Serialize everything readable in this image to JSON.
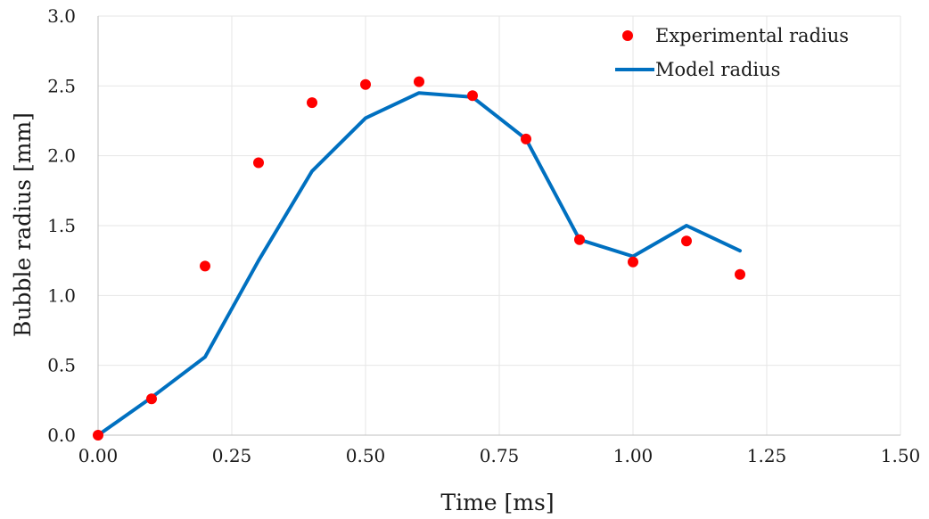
{
  "chart_data": {
    "type": "scatter",
    "xlabel": "Time [ms]",
    "ylabel": "Bubble radius [mm]",
    "xlim": [
      0,
      1.5
    ],
    "ylim": [
      0,
      3.0
    ],
    "x_ticks": [
      "0.00",
      "0.25",
      "0.50",
      "0.75",
      "1.00",
      "1.25",
      "1.50"
    ],
    "y_ticks": [
      "0.0",
      "0.5",
      "1.0",
      "1.5",
      "2.0",
      "2.5",
      "3.0"
    ],
    "grid": true,
    "legend_position": "top-right",
    "series": [
      {
        "name": "Experimental radius",
        "kind": "scatter",
        "color": "#ff0000",
        "x": [
          0.0,
          0.1,
          0.2,
          0.3,
          0.4,
          0.5,
          0.6,
          0.7,
          0.8,
          0.9,
          1.0,
          1.1,
          1.2
        ],
        "y": [
          0.0,
          0.26,
          1.21,
          1.95,
          2.38,
          2.51,
          2.53,
          2.43,
          2.12,
          1.4,
          1.24,
          1.39,
          1.15
        ]
      },
      {
        "name": "Model radius",
        "kind": "line",
        "color": "#0070c0",
        "x": [
          0.0,
          0.1,
          0.2,
          0.3,
          0.4,
          0.5,
          0.6,
          0.7,
          0.8,
          0.9,
          1.0,
          1.1,
          1.2
        ],
        "y": [
          0.0,
          0.27,
          0.56,
          1.25,
          1.89,
          2.27,
          2.45,
          2.42,
          2.12,
          1.4,
          1.28,
          1.5,
          1.32
        ]
      }
    ]
  }
}
